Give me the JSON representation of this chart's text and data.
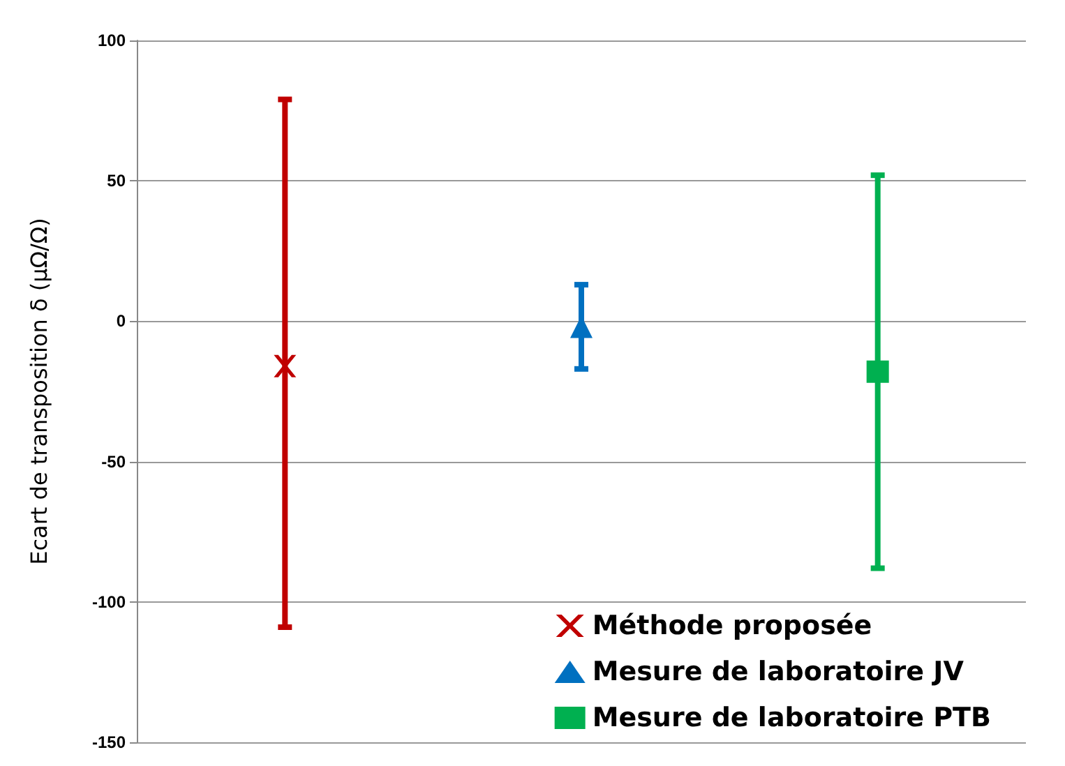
{
  "chart_data": {
    "type": "scatter",
    "ylabel": "Ecart de transposition δ (µΩ/Ω)",
    "categories": [
      null,
      null,
      null
    ],
    "ylim": [
      -150,
      100
    ],
    "yticks": [
      -150,
      -100,
      -50,
      0,
      50,
      100
    ],
    "grid": "y",
    "legend": "bottom right",
    "series": [
      {
        "name": "Méthode proposée",
        "color": "#c00000",
        "marker": "cross",
        "values": [
          -16,
          null,
          null
        ],
        "errors": [
          [
            -109,
            79
          ],
          null,
          null
        ]
      },
      {
        "name": "Mesure de laboratoire JV",
        "color": "#0070c0",
        "marker": "triangle",
        "values": [
          null,
          -2,
          null
        ],
        "errors": [
          null,
          [
            -17,
            13
          ],
          null
        ]
      },
      {
        "name": "Mesure de laboratoire PTB",
        "color": "#00b050",
        "marker": "square",
        "values": [
          null,
          null,
          -18
        ],
        "errors": [
          null,
          null,
          [
            -88,
            52
          ]
        ]
      }
    ]
  }
}
